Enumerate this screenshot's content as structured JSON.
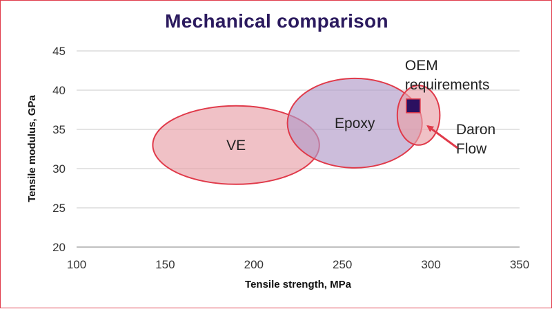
{
  "chart_data": {
    "type": "scatter",
    "title": "Mechanical comparison",
    "xlabel": "Tensile strength, MPa",
    "ylabel": "Tensile modulus, GPa",
    "xlim": [
      100,
      350
    ],
    "ylim": [
      20,
      45
    ],
    "x_ticks": [
      "100",
      "150",
      "200",
      "250",
      "300",
      "350"
    ],
    "y_ticks": [
      "20",
      "25",
      "30",
      "35",
      "40",
      "45"
    ],
    "grid": true,
    "regions": [
      {
        "label": "VE",
        "cx": 190,
        "cy": 33,
        "rx": 47,
        "ry": 5,
        "color": "#e8a0a8"
      },
      {
        "label": "Epoxy",
        "cx": 257,
        "cy": 35.8,
        "rx": 38,
        "ry": 5.7,
        "color": "#b09ac8"
      },
      {
        "label": "",
        "cx": 293,
        "cy": 36.8,
        "rx": 12,
        "ry": 3.8,
        "color": "#e8a0a8"
      }
    ],
    "points": [
      {
        "label": "OEM requirements",
        "x": 290,
        "y": 38,
        "marker": "square",
        "color": "#2b1060"
      }
    ],
    "annotations": [
      {
        "label": "OEM requirements",
        "lines": [
          "OEM",
          "requirements"
        ]
      },
      {
        "label": "Daron Flow",
        "lines": [
          "Daron",
          "Flow"
        ],
        "arrow_to": {
          "x": 295,
          "y": 35.6
        }
      }
    ]
  }
}
